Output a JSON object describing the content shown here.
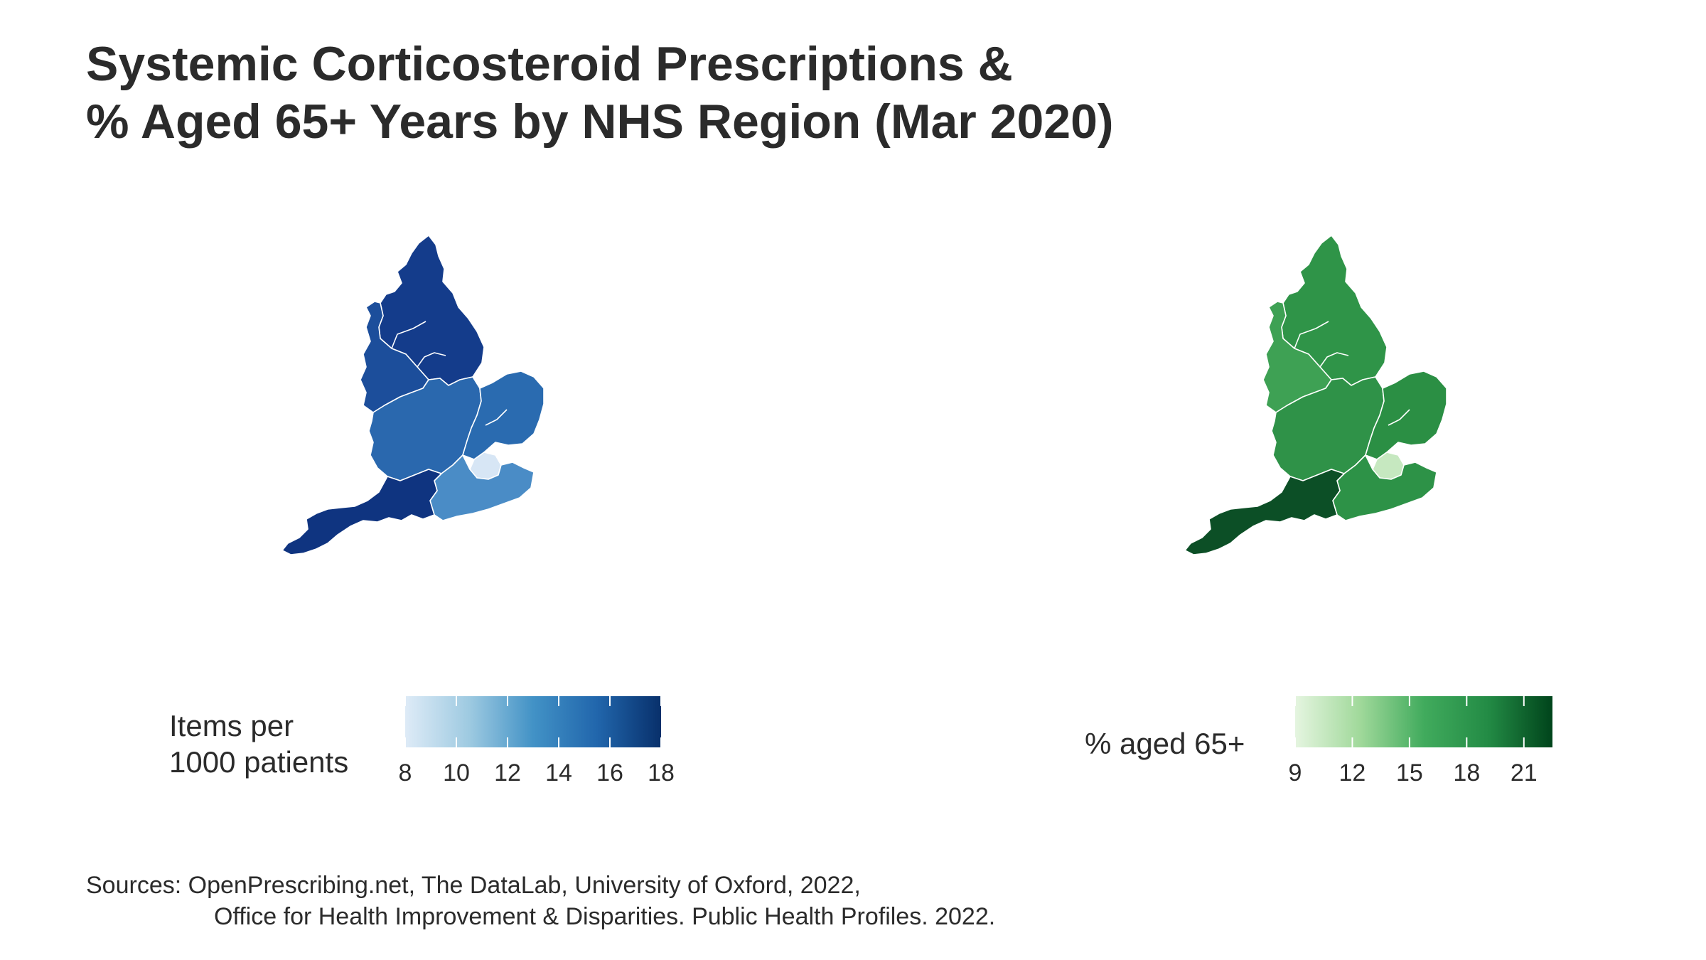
{
  "title": {
    "line1": "Systemic Corticosteroid Prescriptions &",
    "line2": "% Aged 65+ Years by NHS Region (Mar 2020)"
  },
  "maps": {
    "items": {
      "legend_title_line1": "Items per",
      "legend_title_line2": "1000 patients",
      "scale_min": 8,
      "scale_max": 18,
      "ticks": [
        "8",
        "10",
        "12",
        "14",
        "16",
        "18"
      ],
      "tick_values": [
        8,
        10,
        12,
        14,
        16,
        18
      ],
      "palette": [
        "#deebf7",
        "#9ecae1",
        "#4292c6",
        "#2166ac",
        "#08306b"
      ],
      "region_colors": {
        "north_east_yorkshire": "#143c8b",
        "north_west": "#1c4e9b",
        "midlands": "#2a68ae",
        "east_of_england": "#2a6bb0",
        "london": "#d7e6f5",
        "south_east": "#4a8cc6",
        "south_west": "#0f3480"
      }
    },
    "age": {
      "legend_title": "% aged 65+",
      "scale_min": 9,
      "scale_max": 22.5,
      "ticks": [
        "9",
        "12",
        "15",
        "18",
        "21"
      ],
      "tick_values": [
        9,
        12,
        15,
        18,
        21
      ],
      "palette": [
        "#e5f5e0",
        "#a1d99b",
        "#41ab5d",
        "#238b45",
        "#00441b"
      ],
      "region_colors": {
        "north_east_yorkshire": "#2f9448",
        "north_west": "#3ea154",
        "midlands": "#2f9248",
        "east_of_england": "#2b8f44",
        "london": "#c6e8c0",
        "south_east": "#2d9247",
        "south_west": "#0c4f26"
      }
    }
  },
  "caption": {
    "line1": "Sources: OpenPrescribing.net, The DataLab, University of Oxford, 2022,",
    "line2": "Office for Health Improvement & Disparities. Public Health Profiles. 2022."
  }
}
